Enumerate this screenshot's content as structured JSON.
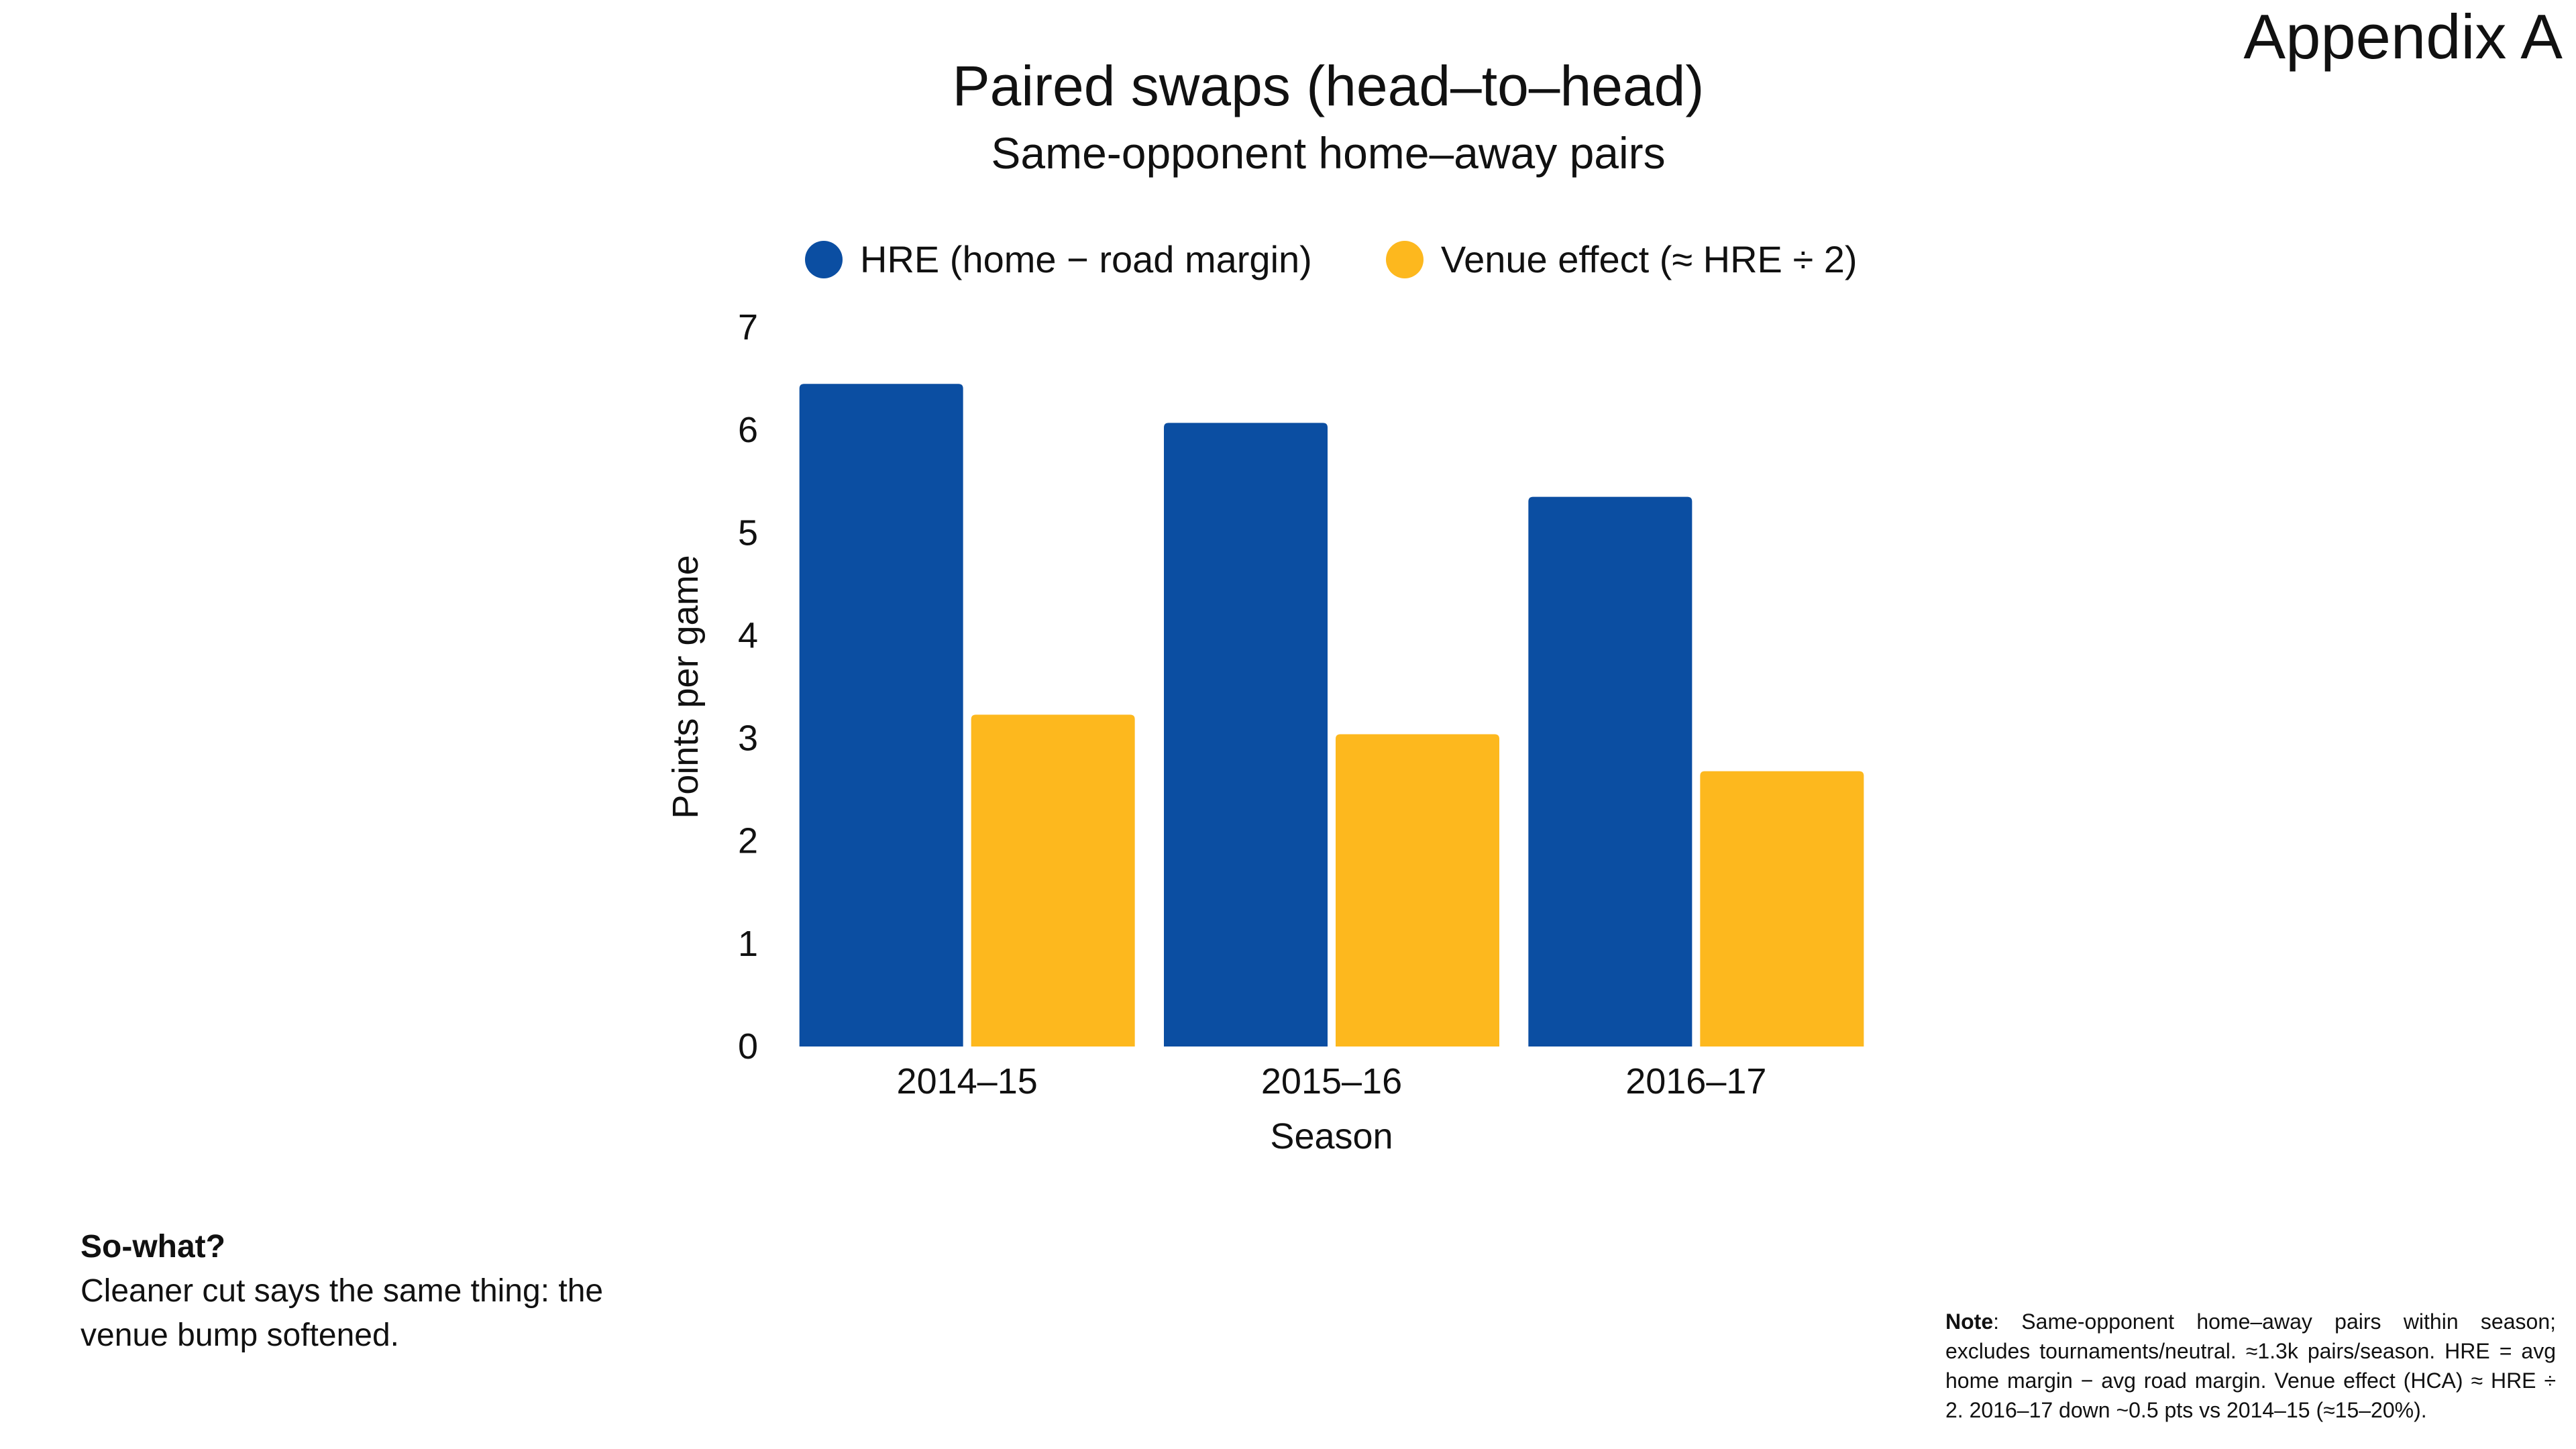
{
  "page": {
    "appendix_label": "Appendix A"
  },
  "chart_data": {
    "type": "bar",
    "title": "Paired swaps (head–to–head)",
    "subtitle": "Same-opponent home–away pairs",
    "xlabel": "Season",
    "ylabel": "Points per game",
    "categories": [
      "2014–15",
      "2015–16",
      "2016–17"
    ],
    "series": [
      {
        "name": "HRE (home − road margin)",
        "color": "#0B4EA2",
        "values": [
          6.45,
          6.07,
          5.35
        ]
      },
      {
        "name": "Venue effect (≈ HRE ÷ 2)",
        "color": "#FDB81E",
        "values": [
          3.23,
          3.04,
          2.68
        ]
      }
    ],
    "ylim": [
      0,
      7
    ],
    "yticks": [
      "0",
      "1",
      "2",
      "3",
      "4",
      "5",
      "6",
      "7"
    ],
    "grid": false,
    "legend_position": "top"
  },
  "annotations": {
    "sowhat_heading": "So-what?",
    "sowhat_body": "Cleaner cut says the same thing: the venue bump softened.",
    "note_label": "Note",
    "note_text": ": Same-opponent home–away pairs within season; excludes tournaments/neutral. ≈1.3k pairs/season. HRE = avg home margin − avg road margin. Venue effect (HCA) ≈ HRE ÷ 2. 2016–17 down ~0.5 pts vs 2014–15 (≈15–20%)."
  }
}
